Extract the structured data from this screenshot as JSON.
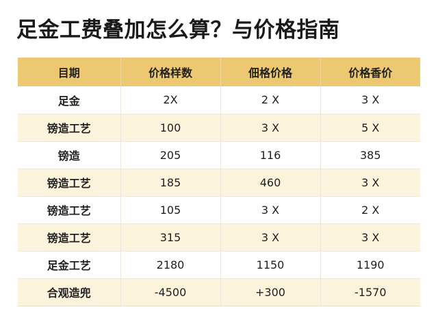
{
  "title": "足金工费叠加怎么算？与价格指南",
  "table": {
    "headers": [
      "目期",
      "价格样数",
      "佃格价格",
      "价格香价"
    ],
    "rows": [
      [
        "足金",
        "2X",
        "2 X",
        "3 X"
      ],
      [
        "镑造工艺",
        "100",
        "3 X",
        "5 X"
      ],
      [
        "镑造",
        "205",
        "116",
        "385"
      ],
      [
        "镑造工艺",
        "185",
        "460",
        "3 X"
      ],
      [
        "镑造工艺",
        "105",
        "3 X",
        "2 X"
      ],
      [
        "镑造工艺",
        "315",
        "3 X",
        "3 X"
      ],
      [
        "足金工艺",
        "2180",
        "1150",
        "1190"
      ],
      [
        "合观造兜",
        "-4500",
        "+300",
        "-1570"
      ]
    ]
  },
  "colors": {
    "header_bg": "#ecc873",
    "stripe_bg": "#fbf3dc",
    "text": "#1f1f1f"
  }
}
